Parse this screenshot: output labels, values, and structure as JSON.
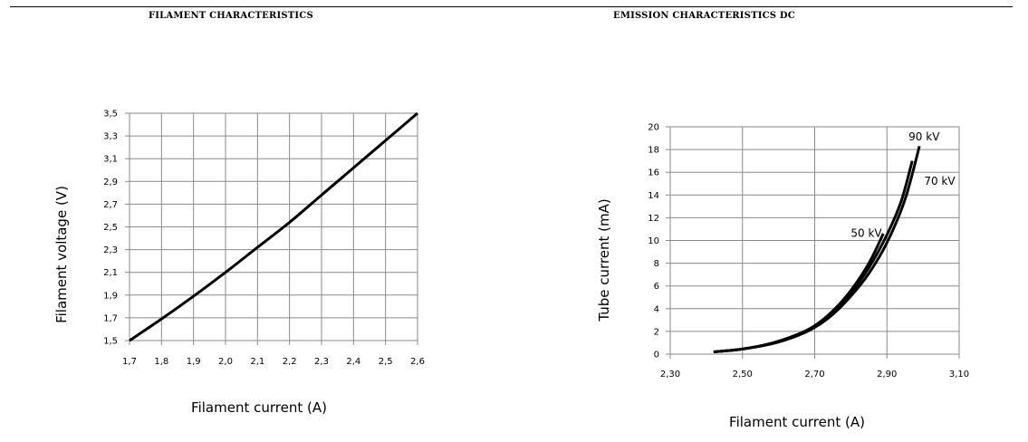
{
  "chart_data": [
    {
      "type": "line",
      "title": "FILAMENT CHARACTERISTICS",
      "xlabel": "Filament current (A)",
      "ylabel": "Filament voltage (V)",
      "xlim": [
        1.7,
        2.6
      ],
      "ylim": [
        1.5,
        3.5
      ],
      "x_ticks": [
        "1,7",
        "1,8",
        "1,9",
        "2,0",
        "2,1",
        "2,2",
        "2,3",
        "2,4",
        "2,5",
        "2,6"
      ],
      "y_ticks": [
        "1,5",
        "1,7",
        "1,9",
        "2,1",
        "2,3",
        "2,5",
        "2,7",
        "2,9",
        "3,1",
        "3,3",
        "3,5"
      ],
      "grid": true,
      "series": [
        {
          "x": [
            1.7,
            1.8,
            1.9,
            2.0,
            2.1,
            2.2,
            2.3,
            2.4,
            2.5,
            2.6
          ],
          "y": [
            1.5,
            1.69,
            1.89,
            2.1,
            2.32,
            2.54,
            2.78,
            3.02,
            3.26,
            3.5
          ]
        }
      ]
    },
    {
      "type": "line",
      "title": "EMISSION CHARACTERISTICS DC",
      "xlabel": "Filament current (A)",
      "ylabel": "Tube current (mA)",
      "xlim": [
        2.3,
        3.1
      ],
      "ylim": [
        0,
        20
      ],
      "x_ticks": [
        "2,30",
        "2,50",
        "2,70",
        "2,90",
        "3,10"
      ],
      "y_ticks": [
        "0",
        "2",
        "4",
        "6",
        "8",
        "10",
        "12",
        "14",
        "16",
        "18",
        "20"
      ],
      "grid": true,
      "series": [
        {
          "name": "50 kV",
          "x": [
            2.42,
            2.5,
            2.58,
            2.65,
            2.7,
            2.75,
            2.8,
            2.85,
            2.89
          ],
          "y": [
            0.2,
            0.45,
            0.95,
            1.7,
            2.5,
            3.8,
            5.6,
            8.0,
            10.6
          ]
        },
        {
          "name": "70 kV",
          "x": [
            2.42,
            2.5,
            2.58,
            2.65,
            2.7,
            2.75,
            2.8,
            2.85,
            2.9,
            2.94,
            2.97
          ],
          "y": [
            0.2,
            0.45,
            0.95,
            1.7,
            2.45,
            3.7,
            5.4,
            7.6,
            10.5,
            13.5,
            17.0
          ]
        },
        {
          "name": "90 kV",
          "x": [
            2.42,
            2.5,
            2.58,
            2.65,
            2.7,
            2.75,
            2.8,
            2.85,
            2.9,
            2.95,
            2.99
          ],
          "y": [
            0.2,
            0.45,
            0.9,
            1.6,
            2.35,
            3.5,
            5.1,
            7.1,
            9.8,
            13.6,
            18.3
          ]
        }
      ]
    }
  ]
}
